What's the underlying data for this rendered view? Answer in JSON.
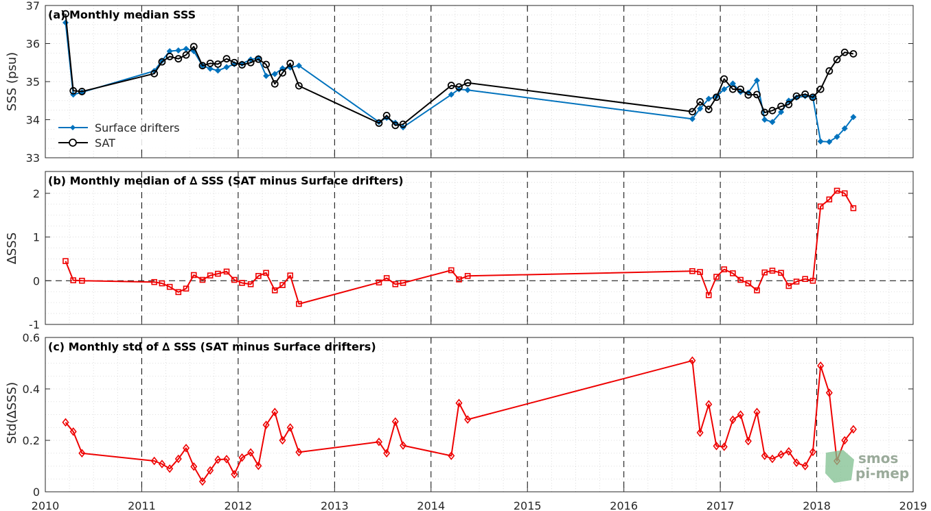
{
  "colors": {
    "drifters": "#0072BD",
    "sat": "#000000",
    "delta": "#EE0000",
    "logo_green": "#7fbf8f",
    "logo_text": "#9aaa9a"
  },
  "logo": {
    "line1": "smos",
    "line2": "pi-mep"
  },
  "x_axis": {
    "ticks": [
      "2010",
      "2011",
      "2012",
      "2013",
      "2014",
      "2015",
      "2016",
      "2017",
      "2018",
      "2019"
    ],
    "range": [
      2010,
      2019
    ]
  },
  "chart_data": [
    {
      "type": "line",
      "title": "(a) Monthly median SSS",
      "xlabel": "",
      "ylabel": "SSS (psu)",
      "ylim": [
        33,
        37
      ],
      "yticks": [
        "33",
        "34",
        "35",
        "36",
        "37"
      ],
      "grid": true,
      "legend_position": "bottom-left",
      "x": [
        2010.21,
        2010.29,
        2010.38,
        2011.13,
        2011.21,
        2011.29,
        2011.38,
        2011.46,
        2011.54,
        2011.63,
        2011.71,
        2011.79,
        2011.88,
        2011.96,
        2012.04,
        2012.13,
        2012.21,
        2012.29,
        2012.38,
        2012.46,
        2012.54,
        2012.63,
        2013.46,
        2013.54,
        2013.63,
        2013.71,
        2014.21,
        2014.29,
        2014.38,
        2016.71,
        2016.79,
        2016.88,
        2016.96,
        2017.04,
        2017.13,
        2017.21,
        2017.29,
        2017.38,
        2017.46,
        2017.54,
        2017.63,
        2017.71,
        2017.79,
        2017.88,
        2017.96,
        2018.04,
        2018.13,
        2018.21,
        2018.29,
        2018.38
      ],
      "series": [
        {
          "name": "Surface drifters",
          "marker": "diamond",
          "values": [
            36.55,
            34.66,
            34.72,
            35.28,
            35.55,
            35.8,
            35.82,
            35.86,
            35.8,
            35.42,
            35.34,
            35.29,
            35.38,
            35.46,
            35.47,
            35.58,
            35.62,
            35.15,
            35.2,
            35.35,
            35.37,
            35.42,
            33.94,
            34.05,
            33.92,
            33.8,
            34.66,
            34.8,
            34.78,
            34.02,
            34.29,
            34.55,
            34.61,
            34.8,
            34.95,
            34.73,
            34.71,
            35.03,
            34.0,
            33.94,
            34.2,
            34.5,
            34.58,
            34.62,
            34.59,
            33.43,
            33.42,
            33.55,
            33.77,
            34.07
          ]
        },
        {
          "name": "SAT",
          "marker": "circle",
          "values": [
            36.78,
            34.76,
            34.74,
            35.21,
            35.52,
            35.66,
            35.6,
            35.7,
            35.92,
            35.42,
            35.48,
            35.46,
            35.6,
            35.5,
            35.44,
            35.5,
            35.59,
            35.45,
            34.94,
            35.23,
            35.48,
            34.89,
            33.91,
            34.11,
            33.85,
            33.88,
            34.9,
            34.86,
            34.97,
            34.21,
            34.47,
            34.27,
            34.59,
            35.07,
            34.8,
            34.8,
            34.65,
            34.66,
            34.19,
            34.24,
            34.35,
            34.4,
            34.62,
            34.67,
            34.59,
            34.8,
            35.28,
            35.58,
            35.77,
            35.73
          ]
        }
      ]
    },
    {
      "type": "line",
      "title": "(b) Monthly median of ∆ SSS (SAT minus Surface drifters)",
      "xlabel": "",
      "ylabel": "∆SSS",
      "ylim": [
        -1,
        2.5
      ],
      "yticks": [
        "-1",
        "0",
        "1",
        "2"
      ],
      "grid": true,
      "zero_line": true,
      "x": [
        2010.21,
        2010.29,
        2010.38,
        2011.13,
        2011.21,
        2011.29,
        2011.38,
        2011.46,
        2011.54,
        2011.63,
        2011.71,
        2011.79,
        2011.88,
        2011.96,
        2012.04,
        2012.13,
        2012.21,
        2012.29,
        2012.38,
        2012.46,
        2012.54,
        2012.63,
        2013.46,
        2013.54,
        2013.63,
        2013.71,
        2014.21,
        2014.29,
        2014.38,
        2016.71,
        2016.79,
        2016.88,
        2016.96,
        2017.04,
        2017.13,
        2017.21,
        2017.29,
        2017.38,
        2017.46,
        2017.54,
        2017.63,
        2017.71,
        2017.79,
        2017.88,
        2017.96,
        2018.04,
        2018.13,
        2018.21,
        2018.29,
        2018.38
      ],
      "series": [
        {
          "name": "",
          "marker": "square",
          "values": [
            0.45,
            0.01,
            0.0,
            -0.03,
            -0.06,
            -0.14,
            -0.26,
            -0.18,
            0.13,
            0.02,
            0.12,
            0.16,
            0.21,
            0.02,
            -0.05,
            -0.08,
            0.11,
            0.18,
            -0.22,
            -0.1,
            0.12,
            -0.53,
            -0.04,
            0.06,
            -0.08,
            -0.05,
            0.24,
            0.03,
            0.11,
            0.22,
            0.2,
            -0.33,
            0.09,
            0.26,
            0.17,
            0.02,
            -0.06,
            -0.22,
            0.19,
            0.23,
            0.18,
            -0.12,
            -0.02,
            0.04,
            0.0,
            1.7,
            1.86,
            2.06,
            2.0,
            1.66
          ]
        }
      ]
    },
    {
      "type": "line",
      "title": "(c) Monthly std of ∆ SSS (SAT minus Surface drifters)",
      "xlabel": "",
      "ylabel": "Std(∆SSS)",
      "ylim": [
        0,
        0.6
      ],
      "yticks": [
        "0",
        "0.2",
        "0.4",
        "0.6"
      ],
      "grid": true,
      "x": [
        2010.21,
        2010.29,
        2010.38,
        2011.13,
        2011.21,
        2011.29,
        2011.38,
        2011.46,
        2011.54,
        2011.63,
        2011.71,
        2011.79,
        2011.88,
        2011.96,
        2012.04,
        2012.13,
        2012.21,
        2012.29,
        2012.38,
        2012.46,
        2012.54,
        2012.63,
        2013.46,
        2013.54,
        2013.63,
        2013.71,
        2014.21,
        2014.29,
        2014.38,
        2016.71,
        2016.79,
        2016.88,
        2016.96,
        2017.04,
        2017.13,
        2017.21,
        2017.29,
        2017.38,
        2017.46,
        2017.54,
        2017.63,
        2017.71,
        2017.79,
        2017.88,
        2017.96,
        2018.04,
        2018.13,
        2018.21,
        2018.29,
        2018.38
      ],
      "series": [
        {
          "name": "",
          "marker": "diamond-open",
          "values": [
            0.27,
            0.234,
            0.15,
            0.12,
            0.108,
            0.09,
            0.128,
            0.17,
            0.098,
            0.04,
            0.083,
            0.125,
            0.127,
            0.068,
            0.133,
            0.153,
            0.101,
            0.26,
            0.31,
            0.2,
            0.25,
            0.154,
            0.194,
            0.15,
            0.273,
            0.18,
            0.14,
            0.345,
            0.281,
            0.51,
            0.23,
            0.34,
            0.178,
            0.175,
            0.28,
            0.3,
            0.197,
            0.31,
            0.14,
            0.128,
            0.145,
            0.157,
            0.113,
            0.1,
            0.155,
            0.49,
            0.385,
            0.12,
            0.2,
            0.243
          ]
        }
      ]
    }
  ]
}
